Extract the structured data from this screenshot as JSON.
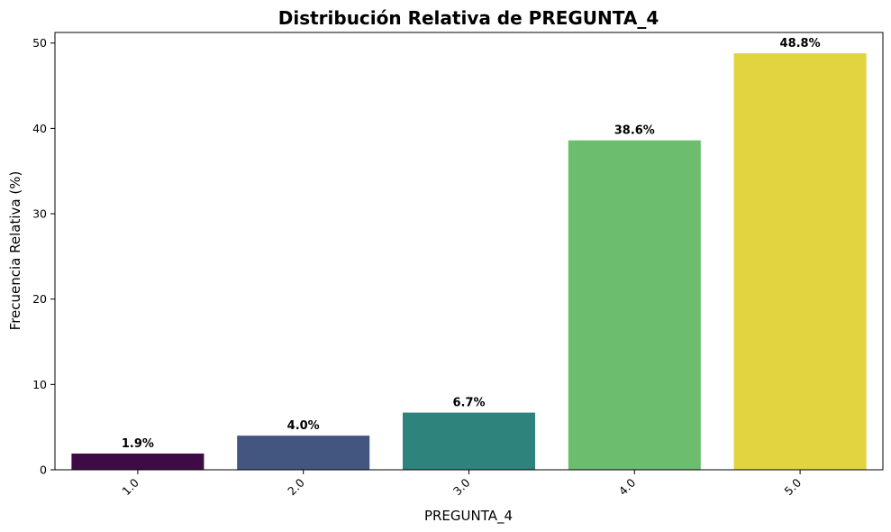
{
  "chart_data": {
    "type": "bar",
    "title": "Distribución Relativa de PREGUNTA_4",
    "xlabel": "PREGUNTA_4",
    "ylabel": "Frecuencia Relativa (%)",
    "categories": [
      "1.0",
      "2.0",
      "3.0",
      "4.0",
      "5.0"
    ],
    "values": [
      1.9,
      4.0,
      6.7,
      38.6,
      48.8
    ],
    "data_labels": [
      "1.9%",
      "4.0%",
      "6.7%",
      "38.6%",
      "48.8%"
    ],
    "colors": [
      "#440154",
      "#3b528b",
      "#21918c",
      "#5ec962",
      "#fde725"
    ],
    "bar_colors_rendered": [
      "#3f0b47",
      "#43567f",
      "#2e837c",
      "#6cbe6e",
      "#e2d43f"
    ],
    "ylim": [
      0,
      51.24
    ],
    "yticks": [
      0,
      10,
      20,
      30,
      40,
      50
    ],
    "ytick_labels": [
      "0",
      "10",
      "20",
      "30",
      "40",
      "50"
    ],
    "grid": false,
    "legend": "none"
  }
}
